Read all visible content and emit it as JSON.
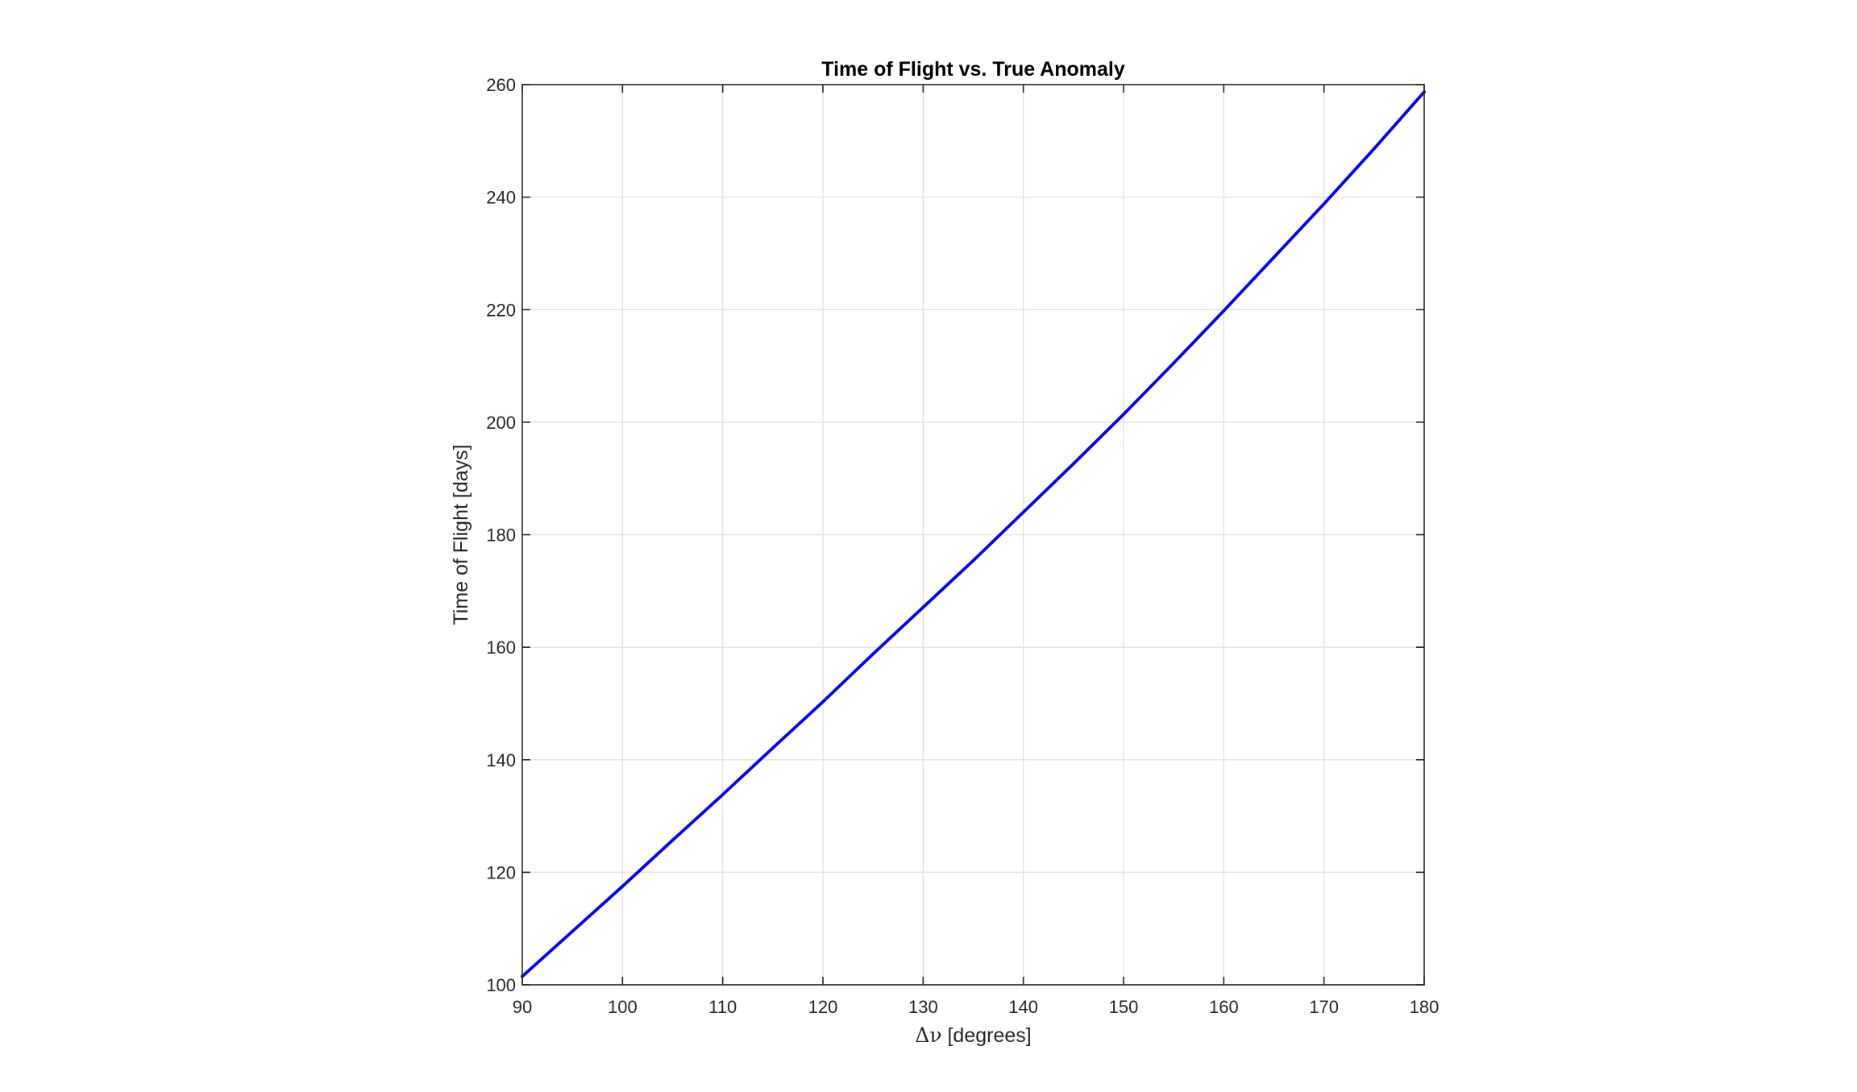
{
  "chart_data": {
    "type": "line",
    "title": "Time of Flight vs. True Anomaly",
    "xlabel_symbol": "Δν",
    "xlabel_unit": " [degrees]",
    "ylabel": "Time of Flight [days]",
    "xlim": [
      90,
      180
    ],
    "ylim": [
      100,
      260
    ],
    "xticks": [
      90,
      100,
      110,
      120,
      130,
      140,
      150,
      160,
      170,
      180
    ],
    "yticks": [
      100,
      120,
      140,
      160,
      180,
      200,
      220,
      240,
      260
    ],
    "grid": true,
    "legend": "none",
    "series": [
      {
        "color": "#0000ff",
        "x": [
          90,
          95,
          100,
          105,
          110,
          115,
          120,
          125,
          130,
          135,
          140,
          145,
          150,
          155,
          160,
          165,
          170,
          175,
          180
        ],
        "y": [
          101.5,
          109.5,
          117.5,
          125.7,
          133.8,
          142.1,
          150.3,
          158.8,
          167.1,
          175.4,
          184,
          192.6,
          201.4,
          210.5,
          219.8,
          229.3,
          238.8,
          248.6,
          258.7
        ]
      }
    ]
  }
}
